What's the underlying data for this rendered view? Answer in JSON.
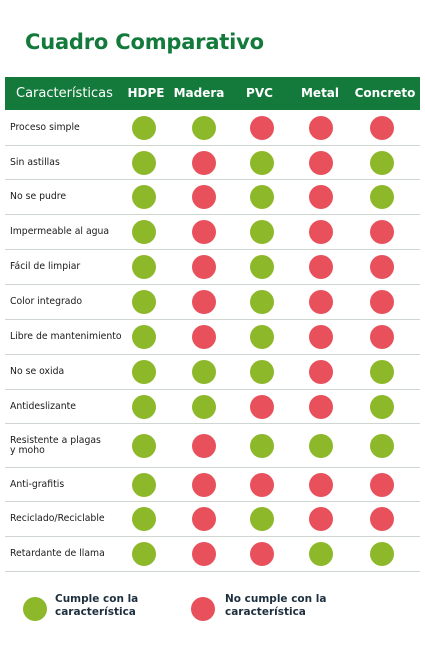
{
  "title": "Cuadro Comparativo",
  "colors": {
    "brand": "#137a3b",
    "yes": "#8cb82a",
    "no": "#e8505b"
  },
  "header": [
    "Características",
    "HDPE",
    "Madera",
    "PVC",
    "Metal",
    "Concreto"
  ],
  "rows": [
    {
      "label": "Proceso simple",
      "values": [
        1,
        1,
        0,
        0,
        0
      ]
    },
    {
      "label": "Sin astillas",
      "values": [
        1,
        0,
        1,
        0,
        1
      ]
    },
    {
      "label": "No se pudre",
      "values": [
        1,
        0,
        1,
        0,
        1
      ]
    },
    {
      "label": "Impermeable al agua",
      "values": [
        1,
        0,
        1,
        0,
        0
      ]
    },
    {
      "label": "Fácil de limpiar",
      "values": [
        1,
        0,
        1,
        0,
        0
      ]
    },
    {
      "label": "Color integrado",
      "values": [
        1,
        0,
        1,
        0,
        0
      ]
    },
    {
      "label": "Libre de mantenimiento",
      "values": [
        1,
        0,
        1,
        0,
        0
      ]
    },
    {
      "label": "No se oxida",
      "values": [
        1,
        1,
        1,
        0,
        1
      ]
    },
    {
      "label": "Antideslizante",
      "values": [
        1,
        1,
        0,
        0,
        1
      ]
    },
    {
      "label": "Resistente a plagas\ny moho",
      "values": [
        1,
        0,
        1,
        1,
        1
      ]
    },
    {
      "label": "Anti-grafitis",
      "values": [
        1,
        0,
        0,
        0,
        0
      ]
    },
    {
      "label": "Reciclado/Reciclable",
      "values": [
        1,
        0,
        1,
        0,
        0
      ]
    },
    {
      "label": "Retardante de llama",
      "values": [
        1,
        0,
        0,
        1,
        1
      ]
    }
  ],
  "legend": {
    "yes": "Cumple con la característica",
    "no": "No cumple con la característica"
  }
}
